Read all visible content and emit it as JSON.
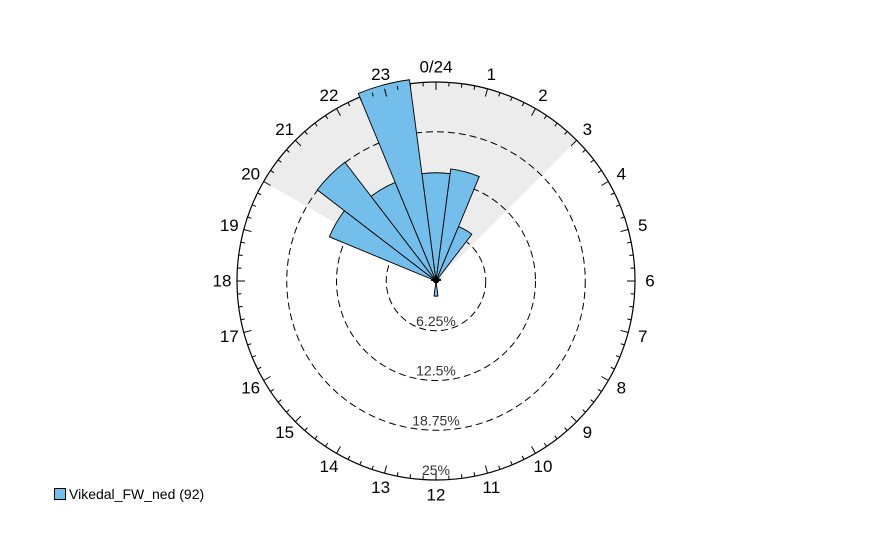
{
  "chart_data": {
    "type": "polar-bar",
    "title": "",
    "center_label": "0/24",
    "hour_labels": [
      "0/24",
      "1",
      "2",
      "3",
      "4",
      "5",
      "6",
      "7",
      "8",
      "9",
      "10",
      "11",
      "12",
      "13",
      "14",
      "15",
      "16",
      "17",
      "18",
      "19",
      "20",
      "21",
      "22",
      "23"
    ],
    "ring_labels": [
      "6.25%",
      "12.5%",
      "18.75%",
      "25%"
    ],
    "rings": [
      6.25,
      12.5,
      18.75,
      25
    ],
    "r_max": 25,
    "shaded_sector_hours": [
      20,
      3
    ],
    "series": [
      {
        "name": "Vikedal_FW_ned (92)",
        "color": "#73BEEA",
        "hours": [
          0,
          1,
          2,
          3,
          4,
          5,
          6,
          7,
          8,
          9,
          10,
          11,
          12,
          13,
          14,
          15,
          16,
          17,
          18,
          19,
          20,
          21,
          22,
          23
        ],
        "values": [
          13.6,
          14.2,
          7.4,
          0.5,
          0.3,
          0.6,
          0.3,
          0.2,
          0.3,
          0.1,
          0.1,
          0.2,
          1.9,
          0.2,
          0.1,
          0.1,
          0.2,
          0.2,
          0.3,
          0.6,
          14.5,
          18.8,
          13.4,
          25.5
        ]
      }
    ]
  },
  "legend": {
    "label": "Vikedal_FW_ned (92)",
    "color": "#73BEEA"
  }
}
